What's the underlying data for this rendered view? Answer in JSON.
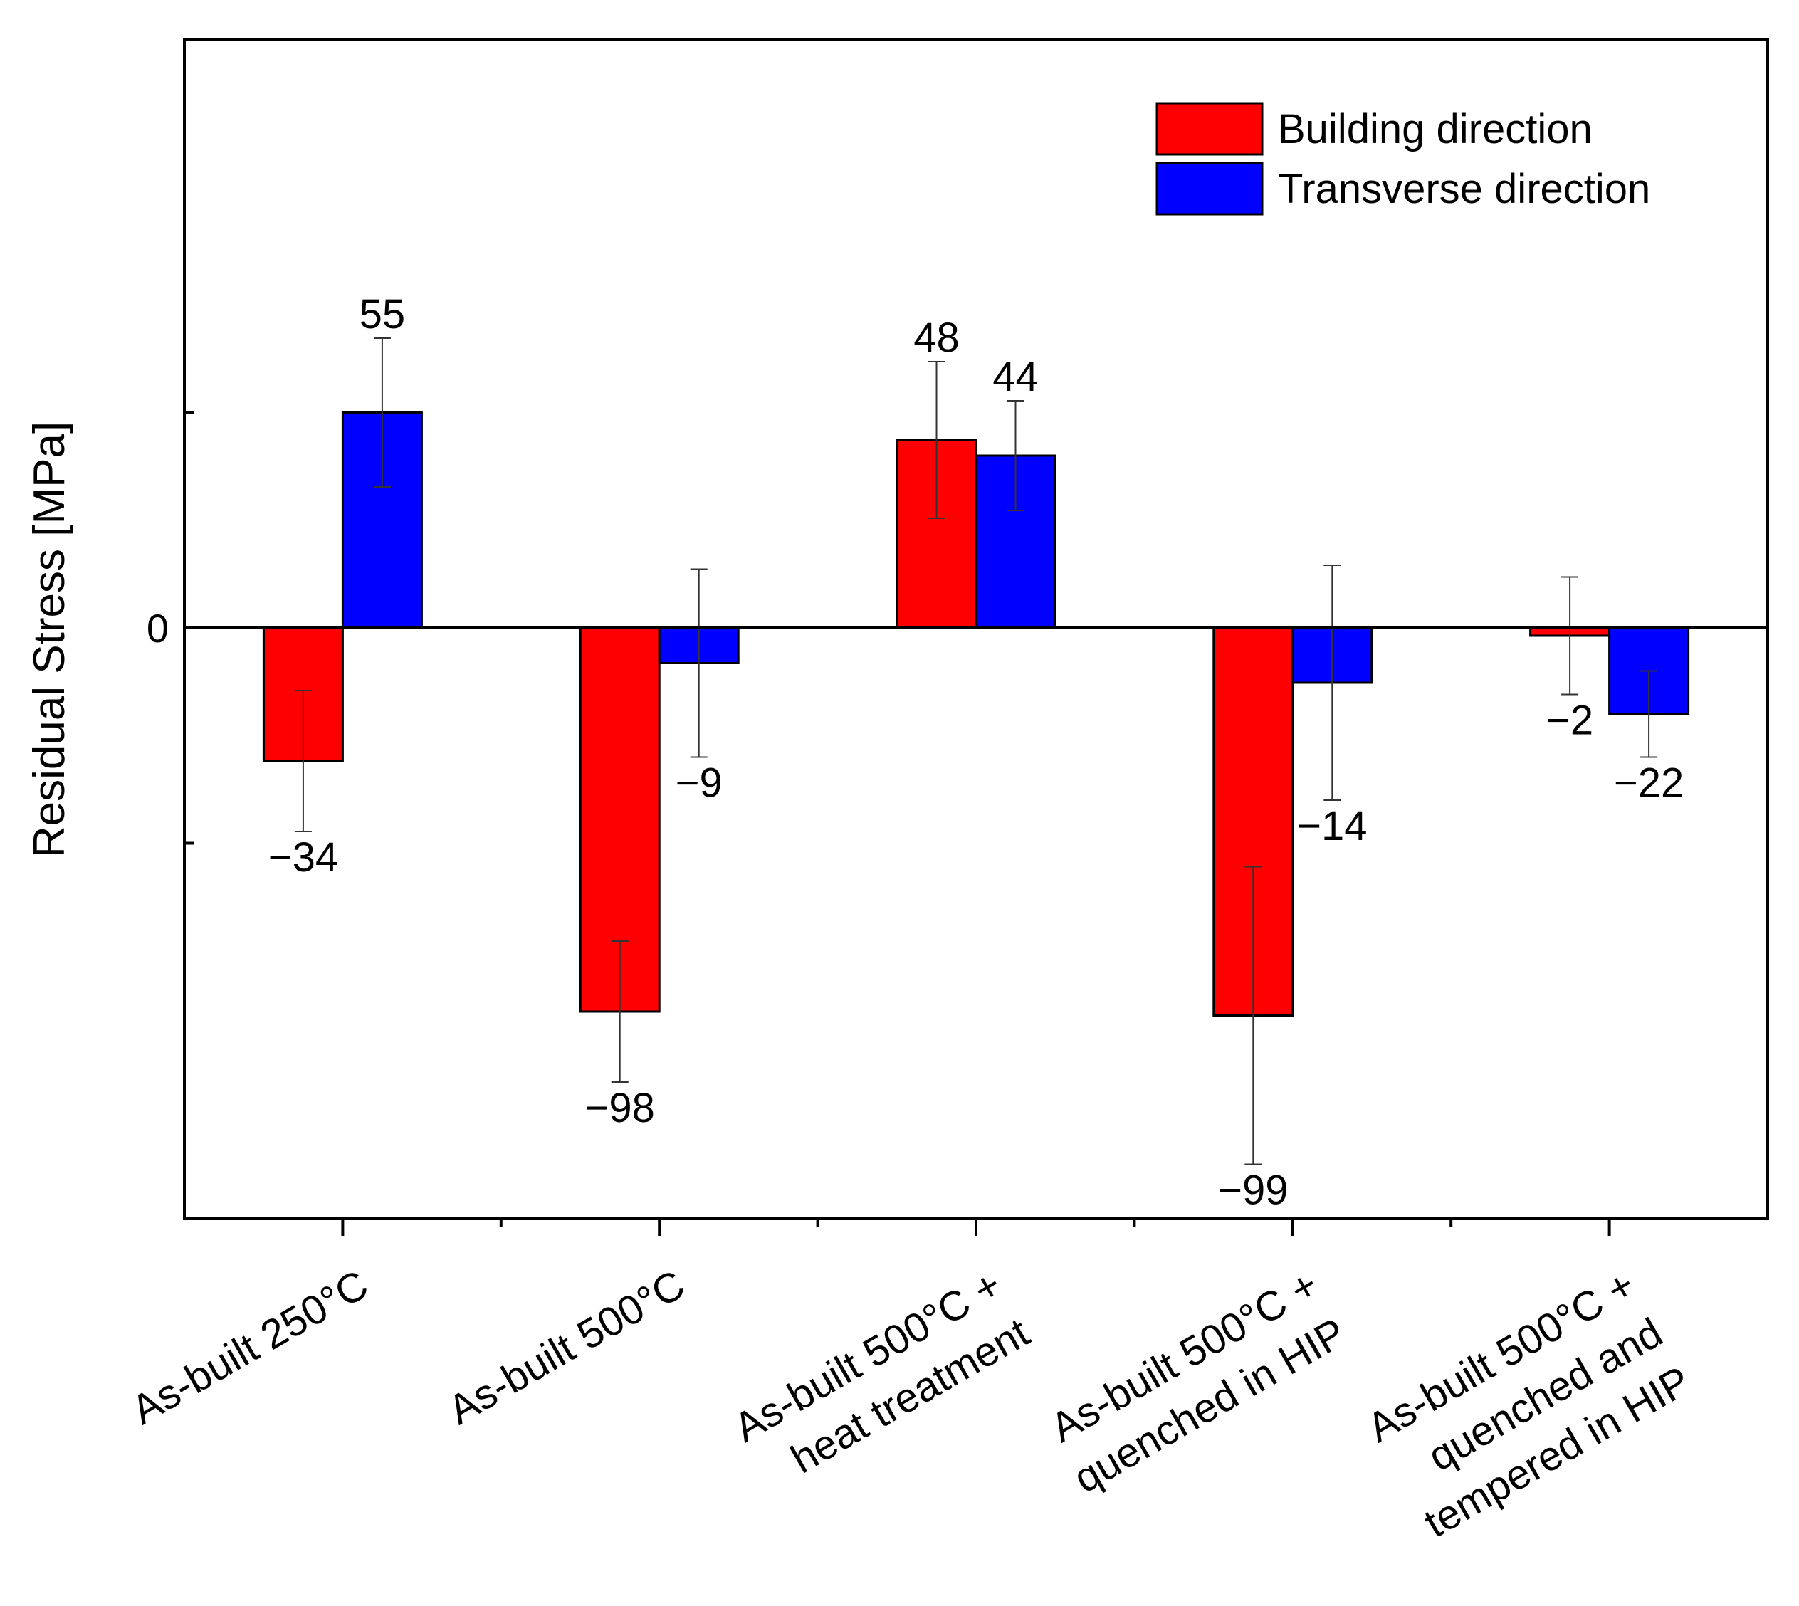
{
  "chart_data": {
    "type": "bar",
    "title": "",
    "xlabel": "",
    "ylabel": "Residual Stress [MPa]",
    "ylim": [
      -150,
      150
    ],
    "y_tick_labels": [
      {
        "value": 0,
        "label": "0"
      }
    ],
    "categories": [
      [
        "As-built 250°C"
      ],
      [
        "As-built 500°C"
      ],
      [
        "As-built 500°C +",
        "heat treatment"
      ],
      [
        "As-built 500°C +",
        "quenched in HIP"
      ],
      [
        "As-built 500°C +",
        "quenched and",
        "tempered in HIP"
      ]
    ],
    "series": [
      {
        "name": "Building direction",
        "color": "#ff0000",
        "values": [
          -34,
          -98,
          48,
          -99,
          -2
        ],
        "errors": [
          18,
          18,
          20,
          38,
          15
        ],
        "value_labels": [
          "−34",
          "−98",
          "48",
          "−99",
          "−2"
        ]
      },
      {
        "name": "Transverse direction",
        "color": "#0000ff",
        "values": [
          55,
          -9,
          44,
          -14,
          -22
        ],
        "errors": [
          19,
          24,
          14,
          30,
          11
        ],
        "value_labels": [
          "55",
          "−9",
          "44",
          "−14",
          "−22"
        ]
      }
    ],
    "legend_position": "top-right",
    "grid": false
  }
}
